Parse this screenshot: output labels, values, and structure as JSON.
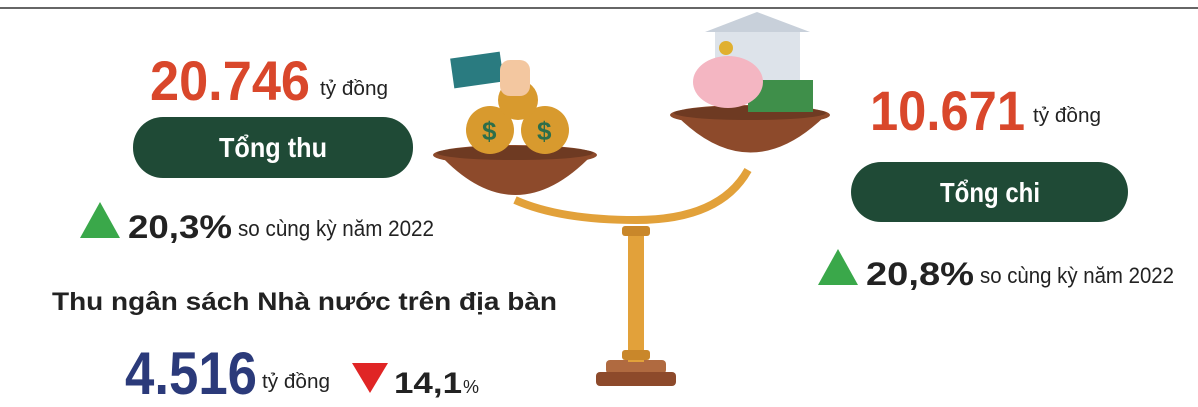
{
  "left": {
    "amount": "20.746",
    "unit": "tỷ đồng",
    "label": "Tổng thu",
    "change": "20,3%",
    "compare": "so cùng kỳ năm 2022"
  },
  "right": {
    "amount": "10.671",
    "unit": "tỷ đồng",
    "label": "Tổng chi",
    "change": "20,8%",
    "compare": "so cùng kỳ năm 2022"
  },
  "local": {
    "heading": "Thu ngân sách Nhà nước trên địa bàn",
    "amount": "4.516",
    "unit": "tỷ đồng",
    "change": "14,1",
    "change_unit": "%"
  }
}
